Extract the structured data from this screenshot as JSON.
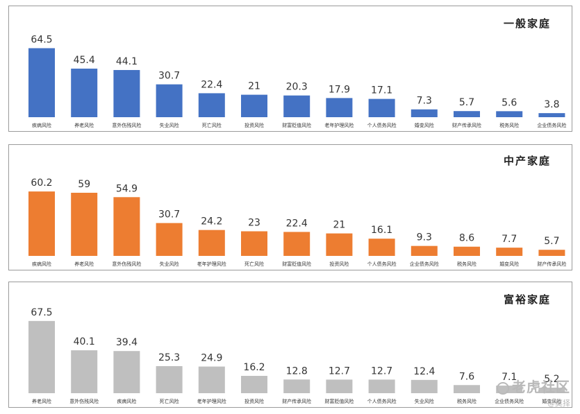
{
  "chart_data": [
    {
      "type": "bar",
      "title": "一般家庭",
      "color": "#4472C4",
      "ylim": [
        0,
        70
      ],
      "categories": [
        "疾病风险",
        "养老风险",
        "意外伤残风险",
        "失业风险",
        "死亡风险",
        "投资风险",
        "财富贬值风险",
        "老年护理风险",
        "个人债务风险",
        "婚变风险",
        "财产传承风险",
        "税务风险",
        "企业债务风险"
      ],
      "values": [
        64.5,
        45.4,
        44.1,
        30.7,
        22.4,
        21,
        20.3,
        17.9,
        17.1,
        7.3,
        5.7,
        5.6,
        3.8
      ],
      "value_labels": [
        "64.5",
        "45.4",
        "44.1",
        "30.7",
        "22.4",
        "21",
        "20.3",
        "17.9",
        "17.1",
        "7.3",
        "5.7",
        "5.6",
        "3.8"
      ]
    },
    {
      "type": "bar",
      "title": "中产家庭",
      "color": "#ED7D31",
      "ylim": [
        0,
        70
      ],
      "categories": [
        "疾病风险",
        "养老风险",
        "意外伤残风险",
        "失业风险",
        "老年护理风险",
        "死亡风险",
        "财富贬值风险",
        "投资风险",
        "个人债务风险",
        "企业债务风险",
        "税务风险",
        "婚变风险",
        "财产传承风险"
      ],
      "values": [
        60.2,
        59,
        54.9,
        30.7,
        24.2,
        23,
        22.4,
        21,
        16.1,
        9.3,
        8.6,
        7.7,
        5.7
      ],
      "value_labels": [
        "60.2",
        "59",
        "54.9",
        "30.7",
        "24.2",
        "23",
        "22.4",
        "21",
        "16.1",
        "9.3",
        "8.6",
        "7.7",
        "5.7"
      ]
    },
    {
      "type": "bar",
      "title": "富裕家庭",
      "color": "#BFBFBF",
      "ylim": [
        0,
        70
      ],
      "categories": [
        "养老风险",
        "意外伤残风险",
        "疾病风险",
        "死亡风险",
        "老年护理风险",
        "投资风险",
        "财产传承风险",
        "财富贬值风险",
        "个人债务风险",
        "失业风险",
        "税务风险",
        "企业债务风险",
        "婚变风险"
      ],
      "values": [
        67.5,
        40.1,
        39.4,
        25.3,
        24.9,
        16.2,
        12.8,
        12.7,
        12.7,
        12.4,
        7.6,
        7.1,
        5.2
      ],
      "value_labels": [
        "67.5",
        "40.1",
        "39.4",
        "25.3",
        "24.9",
        "16.2",
        "12.8",
        "12.7",
        "12.7",
        "12.4",
        "7.6",
        "7.1",
        "5.2"
      ]
    }
  ],
  "watermark": {
    "line1": "老虎社区",
    "line2": "@莫择"
  }
}
